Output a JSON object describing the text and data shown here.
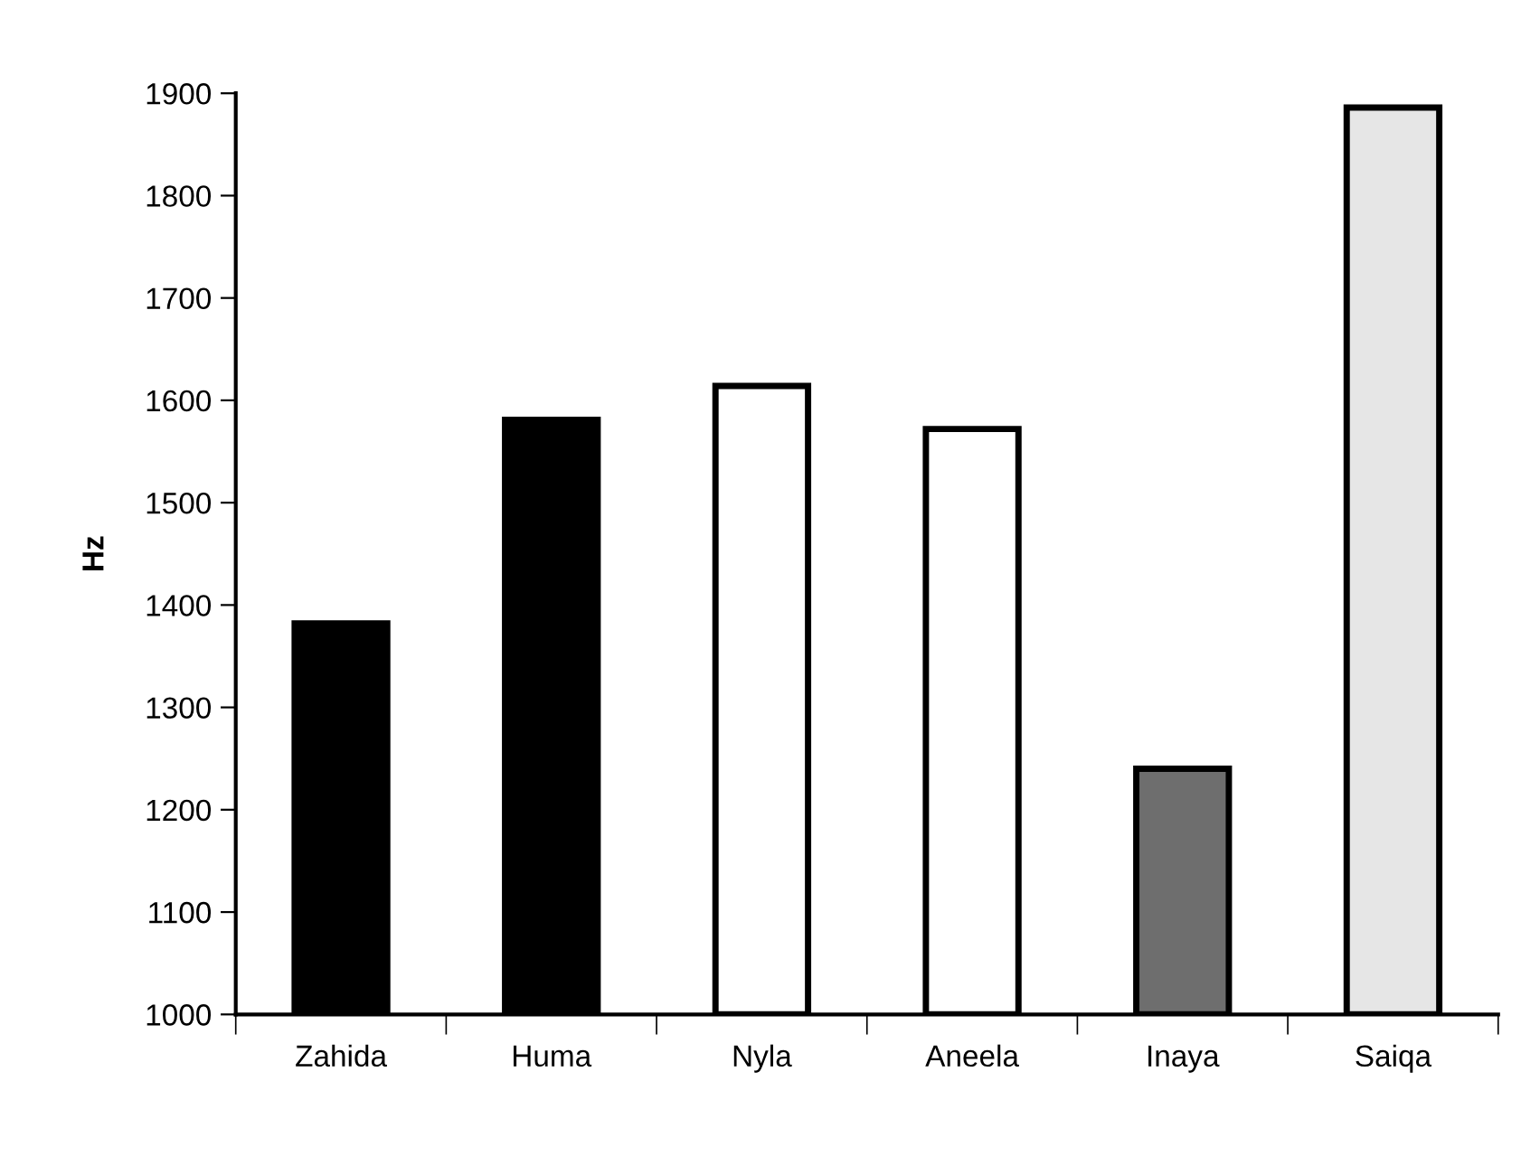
{
  "chart_data": {
    "type": "bar",
    "ylabel": "Hz",
    "categories": [
      "Zahida",
      "Huma",
      "Nyla",
      "Aneela",
      "Inaya",
      "Saiqa"
    ],
    "values": [
      1382,
      1581,
      1614,
      1572,
      1240,
      1886
    ],
    "colors": [
      "#000000",
      "#000000",
      "#ffffff",
      "#ffffff",
      "#6e6e6e",
      "#e6e6e6"
    ],
    "ylim": [
      1000,
      1900
    ],
    "yticks": [
      1000,
      1100,
      1200,
      1300,
      1400,
      1500,
      1600,
      1700,
      1800,
      1900
    ],
    "grid": false,
    "legend": false
  }
}
